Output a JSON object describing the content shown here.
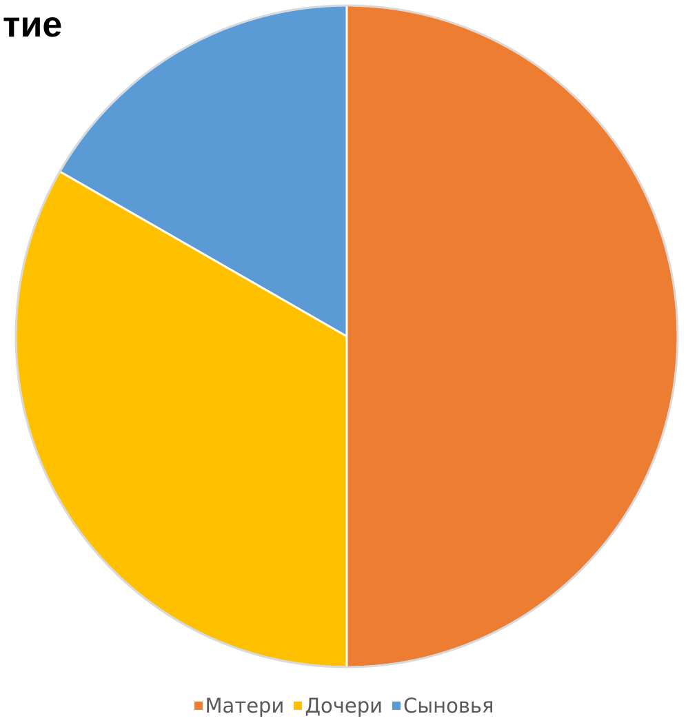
{
  "heading_fragment": "тие",
  "chart_data": {
    "type": "pie",
    "title": "",
    "categories": [
      "Матери",
      "Дочери",
      "Сыновья"
    ],
    "values": [
      50,
      33.3,
      16.7
    ],
    "colors": [
      "#ED7D31",
      "#FFC000",
      "#5B9BD5"
    ],
    "start_angle": "12 o'clock",
    "direction": "clockwise",
    "legend": {
      "position": "bottom",
      "entries": [
        "Матери",
        "Дочери",
        "Сыновья"
      ]
    }
  }
}
